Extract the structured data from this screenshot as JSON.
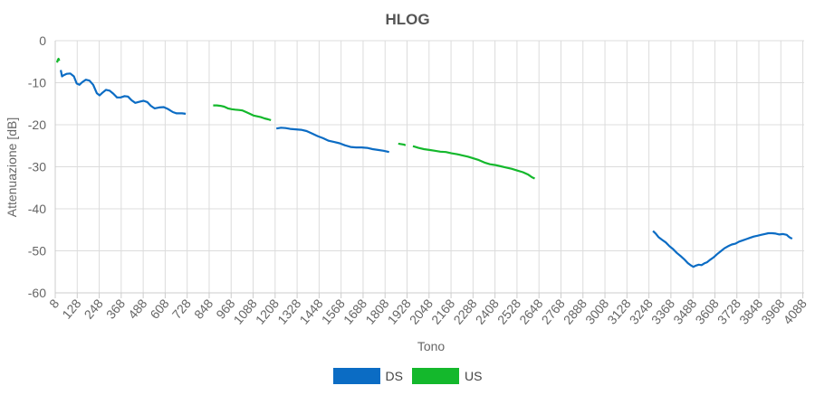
{
  "chart_data": {
    "type": "line",
    "title": "HLOG",
    "xlabel": "Tono",
    "ylabel": "Attenuazione [dB]",
    "xlim": [
      8,
      4095
    ],
    "ylim": [
      -60,
      0
    ],
    "x_ticks": [
      8,
      128,
      248,
      368,
      488,
      608,
      728,
      848,
      968,
      1088,
      1208,
      1328,
      1448,
      1568,
      1688,
      1808,
      1928,
      2048,
      2168,
      2288,
      2408,
      2528,
      2648,
      2768,
      2888,
      3008,
      3128,
      3248,
      3368,
      3488,
      3608,
      3728,
      3848,
      3968,
      4088
    ],
    "y_ticks": [
      0,
      -10,
      -20,
      -30,
      -40,
      -50,
      -60
    ],
    "grid": true,
    "legend_position": "bottom",
    "series": [
      {
        "name": "DS",
        "color": "#0b6cc4",
        "segments": [
          [
            [
              38,
              -7.0
            ],
            [
              45,
              -8.5
            ],
            [
              55,
              -8.2
            ],
            [
              70,
              -7.9
            ],
            [
              90,
              -7.8
            ],
            [
              110,
              -8.5
            ],
            [
              125,
              -10.2
            ],
            [
              140,
              -10.5
            ],
            [
              155,
              -9.9
            ],
            [
              175,
              -9.3
            ],
            [
              195,
              -9.5
            ],
            [
              215,
              -10.5
            ],
            [
              235,
              -12.5
            ],
            [
              250,
              -13.0
            ],
            [
              265,
              -12.4
            ],
            [
              285,
              -11.7
            ],
            [
              305,
              -11.9
            ],
            [
              325,
              -12.6
            ],
            [
              345,
              -13.5
            ],
            [
              365,
              -13.5
            ],
            [
              385,
              -13.2
            ],
            [
              405,
              -13.3
            ],
            [
              425,
              -14.2
            ],
            [
              445,
              -14.8
            ],
            [
              470,
              -14.5
            ],
            [
              490,
              -14.3
            ],
            [
              510,
              -14.6
            ],
            [
              530,
              -15.5
            ],
            [
              550,
              -16.1
            ],
            [
              575,
              -15.9
            ],
            [
              600,
              -15.8
            ],
            [
              625,
              -16.3
            ],
            [
              650,
              -17.0
            ],
            [
              670,
              -17.3
            ],
            [
              700,
              -17.3
            ],
            [
              720,
              -17.4
            ]
          ],
          [
            [
              1215,
              -20.9
            ],
            [
              1240,
              -20.7
            ],
            [
              1265,
              -20.8
            ],
            [
              1290,
              -21.0
            ],
            [
              1320,
              -21.1
            ],
            [
              1350,
              -21.2
            ],
            [
              1380,
              -21.5
            ],
            [
              1410,
              -22.1
            ],
            [
              1440,
              -22.7
            ],
            [
              1470,
              -23.2
            ],
            [
              1500,
              -23.8
            ],
            [
              1530,
              -24.1
            ],
            [
              1560,
              -24.4
            ],
            [
              1590,
              -24.9
            ],
            [
              1620,
              -25.3
            ],
            [
              1650,
              -25.4
            ],
            [
              1680,
              -25.4
            ],
            [
              1710,
              -25.5
            ],
            [
              1740,
              -25.8
            ],
            [
              1770,
              -26.0
            ],
            [
              1800,
              -26.2
            ],
            [
              1830,
              -26.5
            ]
          ],
          [
            [
              3270,
              -45.3
            ],
            [
              3285,
              -45.9
            ],
            [
              3300,
              -46.7
            ],
            [
              3320,
              -47.4
            ],
            [
              3340,
              -48.0
            ],
            [
              3360,
              -48.9
            ],
            [
              3380,
              -49.6
            ],
            [
              3400,
              -50.5
            ],
            [
              3420,
              -51.2
            ],
            [
              3440,
              -52.0
            ],
            [
              3460,
              -52.9
            ],
            [
              3475,
              -53.4
            ],
            [
              3490,
              -53.8
            ],
            [
              3505,
              -53.5
            ],
            [
              3520,
              -53.3
            ],
            [
              3535,
              -53.4
            ],
            [
              3550,
              -53.0
            ],
            [
              3565,
              -52.7
            ],
            [
              3580,
              -52.2
            ],
            [
              3600,
              -51.6
            ],
            [
              3620,
              -50.8
            ],
            [
              3640,
              -50.1
            ],
            [
              3660,
              -49.4
            ],
            [
              3680,
              -48.9
            ],
            [
              3700,
              -48.5
            ],
            [
              3720,
              -48.3
            ],
            [
              3740,
              -47.8
            ],
            [
              3760,
              -47.5
            ],
            [
              3780,
              -47.2
            ],
            [
              3800,
              -46.9
            ],
            [
              3820,
              -46.6
            ],
            [
              3840,
              -46.4
            ],
            [
              3860,
              -46.2
            ],
            [
              3880,
              -46.0
            ],
            [
              3900,
              -45.8
            ],
            [
              3920,
              -45.8
            ],
            [
              3940,
              -45.9
            ],
            [
              3960,
              -46.1
            ],
            [
              3980,
              -46.0
            ],
            [
              4000,
              -46.2
            ],
            [
              4010,
              -46.6
            ],
            [
              4020,
              -46.9
            ],
            [
              4030,
              -47.1
            ]
          ]
        ]
      },
      {
        "name": "US",
        "color": "#14b82c",
        "segments": [
          [
            [
              18,
              -5.2
            ],
            [
              22,
              -4.6
            ],
            [
              26,
              -4.3
            ],
            [
              30,
              -4.8
            ]
          ],
          [
            [
              870,
              -15.4
            ],
            [
              890,
              -15.4
            ],
            [
              910,
              -15.5
            ],
            [
              930,
              -15.7
            ],
            [
              950,
              -16.1
            ],
            [
              970,
              -16.3
            ],
            [
              990,
              -16.4
            ],
            [
              1010,
              -16.5
            ],
            [
              1030,
              -16.6
            ],
            [
              1050,
              -17.0
            ],
            [
              1070,
              -17.4
            ],
            [
              1090,
              -17.8
            ],
            [
              1110,
              -18.0
            ],
            [
              1130,
              -18.2
            ],
            [
              1150,
              -18.5
            ],
            [
              1170,
              -18.7
            ],
            [
              1185,
              -18.9
            ]
          ],
          [
            [
              1880,
              -24.5
            ],
            [
              1895,
              -24.6
            ],
            [
              1910,
              -24.7
            ],
            [
              1920,
              -24.9
            ]
          ],
          [
            [
              1960,
              -25.1
            ],
            [
              1990,
              -25.5
            ],
            [
              2020,
              -25.8
            ],
            [
              2050,
              -26.0
            ],
            [
              2080,
              -26.2
            ],
            [
              2110,
              -26.4
            ],
            [
              2140,
              -26.5
            ],
            [
              2170,
              -26.8
            ],
            [
              2200,
              -27.0
            ],
            [
              2230,
              -27.3
            ],
            [
              2260,
              -27.6
            ],
            [
              2290,
              -28.0
            ],
            [
              2320,
              -28.4
            ],
            [
              2350,
              -29.0
            ],
            [
              2380,
              -29.4
            ],
            [
              2410,
              -29.6
            ],
            [
              2440,
              -29.9
            ],
            [
              2470,
              -30.2
            ],
            [
              2500,
              -30.5
            ],
            [
              2530,
              -30.9
            ],
            [
              2560,
              -31.3
            ],
            [
              2590,
              -31.9
            ],
            [
              2610,
              -32.5
            ],
            [
              2625,
              -32.8
            ]
          ]
        ]
      }
    ]
  },
  "legend": {
    "ds_label": "DS",
    "us_label": "US",
    "ds_color": "#0b6cc4",
    "us_color": "#14b82c"
  }
}
